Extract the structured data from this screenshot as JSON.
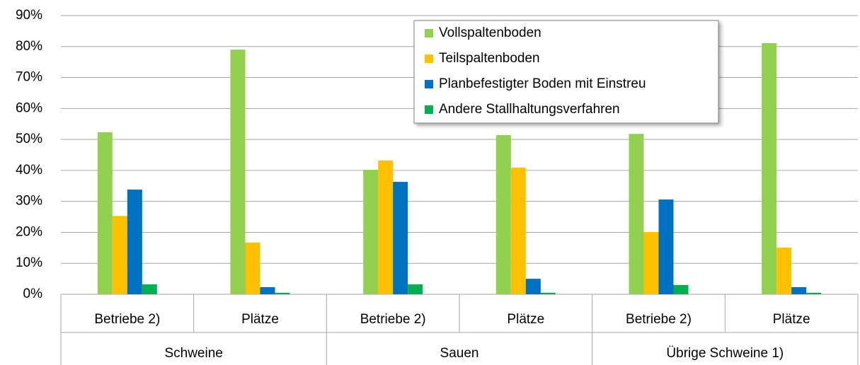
{
  "chart_data": {
    "type": "bar",
    "categories": [
      "Betriebe 2)",
      "Plätze",
      "Betriebe 2)",
      "Plätze",
      "Betriebe 2)",
      "Plätze"
    ],
    "groups": [
      "Schweine",
      "Sauen",
      "Übrige Schweine 1)"
    ],
    "series": [
      {
        "name": "Vollspaltenboden",
        "color": "#92d050",
        "values": [
          52.3,
          79,
          40.2,
          51.4,
          51.8,
          81.1
        ]
      },
      {
        "name": "Teilspaltenboden",
        "color": "#ffc000",
        "values": [
          25.3,
          16.7,
          43.2,
          40.9,
          20.1,
          15.1
        ]
      },
      {
        "name": "Planbefestigter Boden mit Einstreu",
        "color": "#0070c0",
        "values": [
          33.8,
          2.3,
          36.3,
          5.0,
          30.6,
          2.3
        ]
      },
      {
        "name": "Andere Stallhaltungsverfahren",
        "color": "#00b050",
        "values": [
          3.2,
          0.5,
          3.2,
          0.5,
          3.0,
          0.5
        ]
      }
    ],
    "ylim": [
      0,
      90
    ],
    "yticks": [
      {
        "value": 0,
        "label": "0%"
      },
      {
        "value": 10,
        "label": "10%"
      },
      {
        "value": 20,
        "label": "20%"
      },
      {
        "value": 30,
        "label": "30%"
      },
      {
        "value": 40,
        "label": "40%"
      },
      {
        "value": 50,
        "label": "50%"
      },
      {
        "value": 60,
        "label": "60%"
      },
      {
        "value": 70,
        "label": "70%"
      },
      {
        "value": 80,
        "label": "80%"
      },
      {
        "value": 90,
        "label": "90%"
      }
    ],
    "grid": true,
    "legend": "upper right"
  }
}
